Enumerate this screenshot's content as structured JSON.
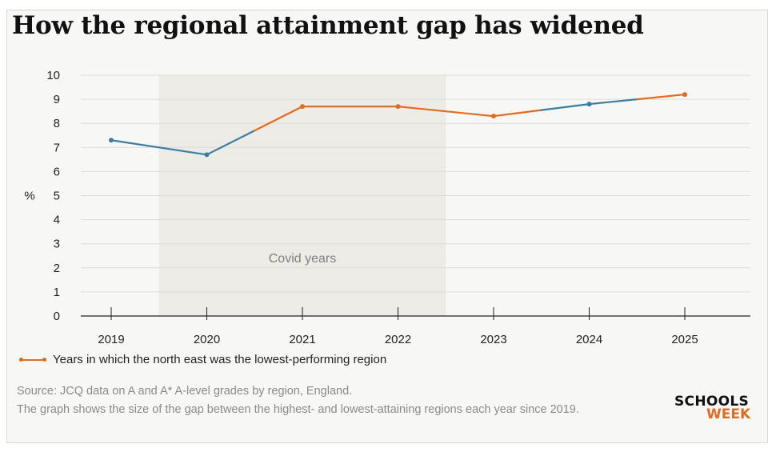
{
  "title": "How the regional attainment gap has widened",
  "colors": {
    "highlight": "#e36b1e",
    "base": "#3a7ea3",
    "shade": "#ecebe6"
  },
  "chart_data": {
    "type": "line",
    "title": "How the regional attainment gap has widened",
    "ylabel": "%",
    "xlabel": "",
    "ylim": [
      0,
      10
    ],
    "yticks": [
      0,
      1,
      2,
      3,
      4,
      5,
      6,
      7,
      8,
      9,
      10
    ],
    "categories": [
      "2019",
      "2020",
      "2021",
      "2022",
      "2023",
      "2024",
      "2025"
    ],
    "values": [
      7.3,
      6.7,
      8.7,
      8.7,
      8.3,
      8.8,
      9.2
    ],
    "segment_colors": [
      "base",
      "base+highlight",
      "highlight",
      "highlight",
      "highlight+base",
      "base+highlight"
    ],
    "highlight_years": [
      "2021",
      "2022",
      "2023",
      "2025"
    ],
    "grid": true,
    "shaded_region": {
      "from": "2020",
      "to": "2022",
      "label": "Covid years"
    },
    "legend": {
      "label": "Years in which the north east was the lowest-performing region",
      "position": "bottom-left"
    }
  },
  "footnotes": [
    "Source: JCQ data on A and A* A-level grades by region, England.",
    "The graph shows the size of the gap between the highest- and lowest-attaining regions each year since 2019."
  ],
  "logo": {
    "line1": "SCHOOLS",
    "line2": "WEEK"
  }
}
